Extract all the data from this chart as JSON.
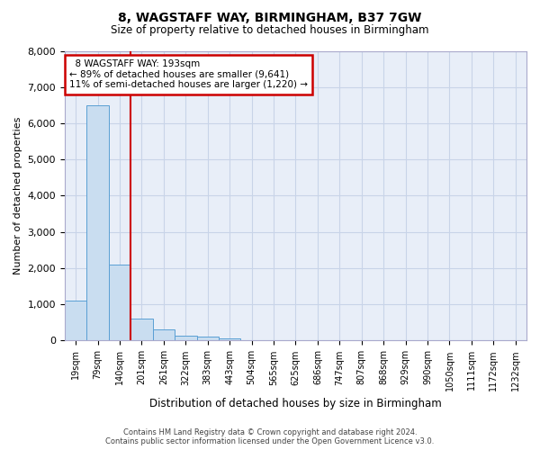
{
  "title": "8, WAGSTAFF WAY, BIRMINGHAM, B37 7GW",
  "subtitle": "Size of property relative to detached houses in Birmingham",
  "xlabel": "Distribution of detached houses by size in Birmingham",
  "ylabel": "Number of detached properties",
  "bin_labels": [
    "19sqm",
    "79sqm",
    "140sqm",
    "201sqm",
    "261sqm",
    "322sqm",
    "383sqm",
    "443sqm",
    "504sqm",
    "565sqm",
    "625sqm",
    "686sqm",
    "747sqm",
    "807sqm",
    "868sqm",
    "929sqm",
    "990sqm",
    "1050sqm",
    "1111sqm",
    "1172sqm",
    "1232sqm"
  ],
  "bar_values": [
    1100,
    6500,
    2100,
    600,
    300,
    130,
    100,
    50,
    20,
    10,
    5,
    2,
    1,
    0,
    0,
    0,
    0,
    0,
    0,
    0,
    0
  ],
  "bar_color": "#c9ddf0",
  "bar_edge_color": "#5a9fd4",
  "ylim": [
    0,
    8000
  ],
  "yticks": [
    0,
    1000,
    2000,
    3000,
    4000,
    5000,
    6000,
    7000,
    8000
  ],
  "red_line_x": 2.5,
  "annotation_title": "8 WAGSTAFF WAY: 193sqm",
  "annotation_line1": "← 89% of detached houses are smaller (9,641)",
  "annotation_line2": "11% of semi-detached houses are larger (1,220) →",
  "annotation_box_color": "#ffffff",
  "annotation_box_edge": "#cc0000",
  "grid_color": "#c8d4e8",
  "background_color": "#e8eef8",
  "footer1": "Contains HM Land Registry data © Crown copyright and database right 2024.",
  "footer2": "Contains public sector information licensed under the Open Government Licence v3.0."
}
